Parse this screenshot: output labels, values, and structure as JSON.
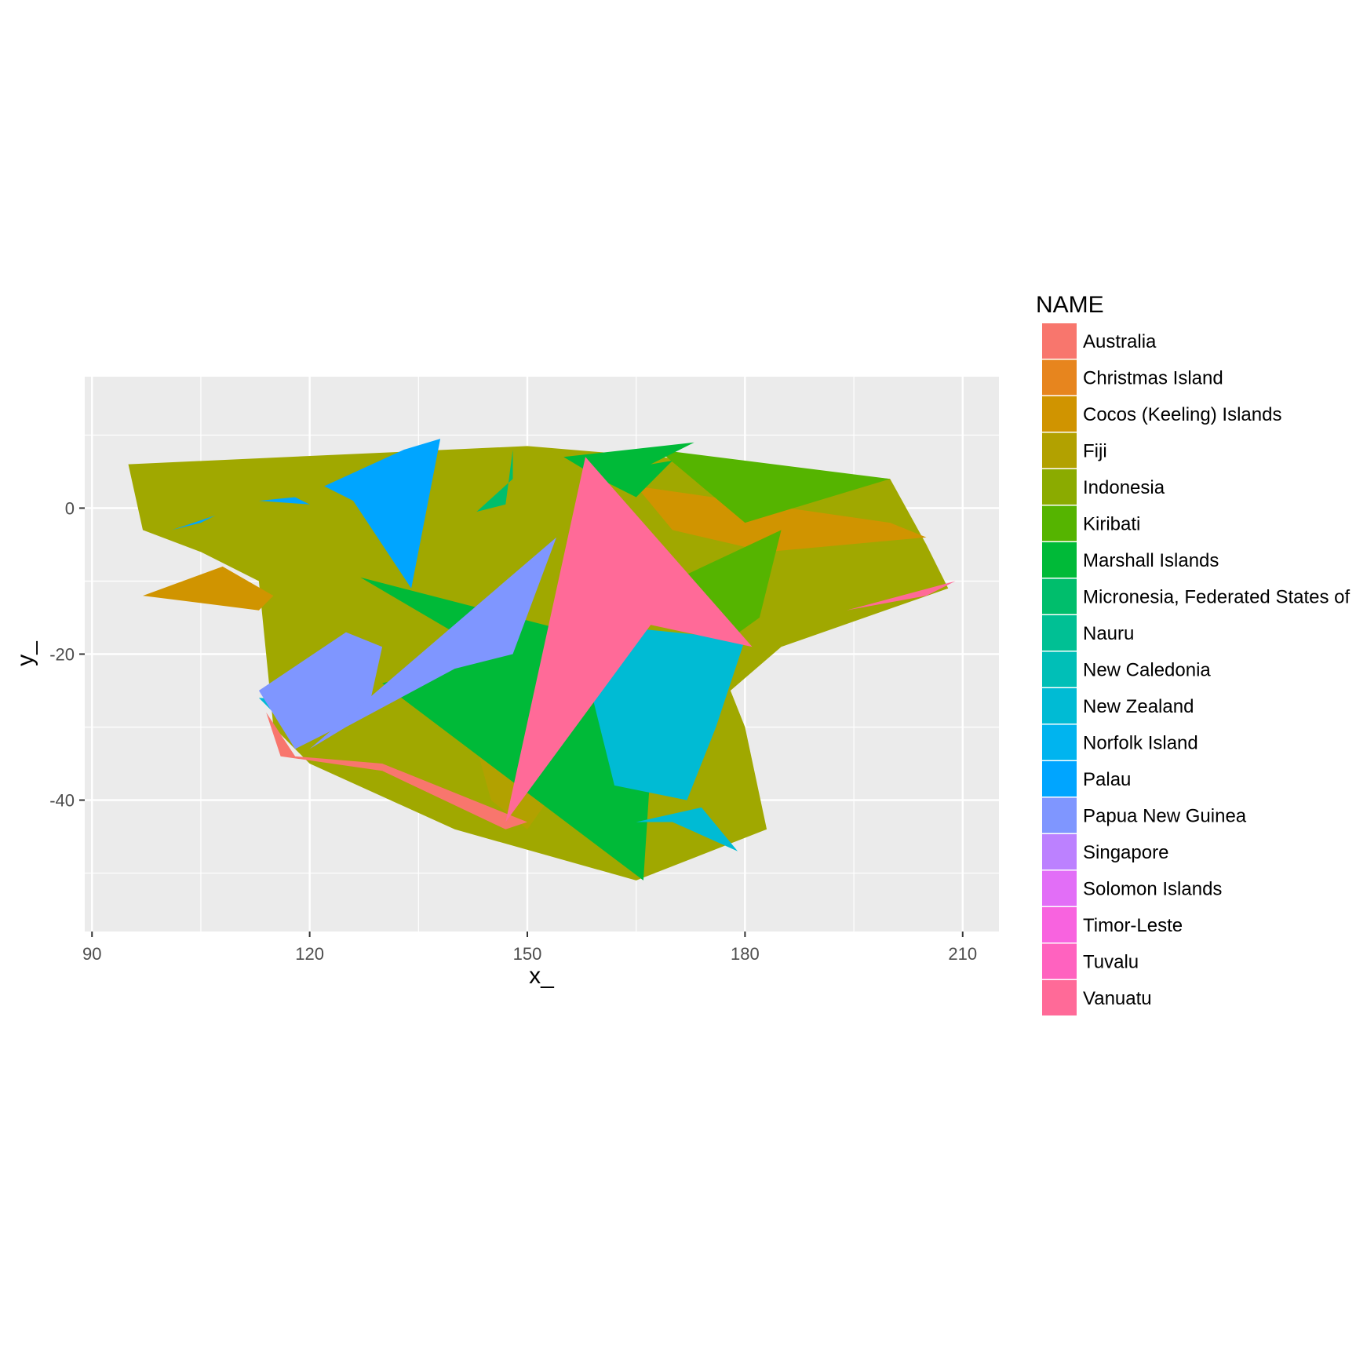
{
  "chart_data": {
    "type": "area",
    "xlabel": "x_",
    "ylabel": "y_",
    "xlim": [
      89,
      215
    ],
    "ylim": [
      -58,
      18
    ],
    "x_ticks": [
      90,
      120,
      150,
      180,
      210
    ],
    "x_minor": [
      105,
      135,
      165,
      195
    ],
    "y_ticks": [
      0,
      -20,
      -40
    ],
    "y_minor": [
      10,
      -10,
      -30,
      -50
    ],
    "grid": true,
    "legend": {
      "title": "NAME",
      "placement": "right",
      "entries": [
        {
          "name": "Australia",
          "color": "#F8766D"
        },
        {
          "name": "Christmas Island",
          "color": "#E7851E"
        },
        {
          "name": "Cocos (Keeling) Islands",
          "color": "#D09400"
        },
        {
          "name": "Fiji",
          "color": "#B2A100"
        },
        {
          "name": "Indonesia",
          "color": "#8BAB00"
        },
        {
          "name": "Kiribati",
          "color": "#55B400"
        },
        {
          "name": "Marshall Islands",
          "color": "#00BA38"
        },
        {
          "name": "Micronesia, Federated States of",
          "color": "#00BE6C"
        },
        {
          "name": "Nauru",
          "color": "#00C094"
        },
        {
          "name": "New Caledonia",
          "color": "#00BFB7"
        },
        {
          "name": "New Zealand",
          "color": "#00BBD4"
        },
        {
          "name": "Norfolk Island",
          "color": "#00B4EF"
        },
        {
          "name": "Palau",
          "color": "#00A5FF"
        },
        {
          "name": "Papua New Guinea",
          "color": "#7F96FF"
        },
        {
          "name": "Singapore",
          "color": "#BC81FF"
        },
        {
          "name": "Solomon Islands",
          "color": "#E26EF7"
        },
        {
          "name": "Timor-Leste",
          "color": "#F863DF"
        },
        {
          "name": "Tuvalu",
          "color": "#FF62BF"
        },
        {
          "name": "Vanuatu",
          "color": "#FF6A98"
        }
      ]
    },
    "polygons": [
      {
        "name": "Indonesia",
        "color": "#A0A800",
        "points": [
          [
            95,
            6
          ],
          [
            150,
            8.5
          ],
          [
            180,
            6
          ],
          [
            200,
            4
          ],
          [
            205,
            -5
          ],
          [
            208,
            -11
          ],
          [
            185,
            -19
          ],
          [
            178,
            -25
          ],
          [
            180,
            -30
          ],
          [
            183,
            -44
          ],
          [
            165,
            -51
          ],
          [
            140,
            -44
          ],
          [
            120,
            -35
          ],
          [
            115,
            -30
          ],
          [
            113,
            -10
          ],
          [
            105,
            -6
          ],
          [
            97,
            -3
          ]
        ]
      },
      {
        "name": "Cocos (Keeling) Islands",
        "color": "#D09400",
        "points": [
          [
            97,
            -12
          ],
          [
            108,
            -8
          ],
          [
            115,
            -12
          ],
          [
            113,
            -14
          ]
        ]
      },
      {
        "name": "Cocos (Keeling) Islands",
        "color": "#D09400",
        "points": [
          [
            165,
            3
          ],
          [
            200,
            -2
          ],
          [
            205,
            -4
          ],
          [
            183,
            -6
          ],
          [
            170,
            -3
          ]
        ]
      },
      {
        "name": "Fiji",
        "color": "#B2A100",
        "points": [
          [
            140,
            -22
          ],
          [
            155,
            -20
          ],
          [
            160,
            -30
          ],
          [
            150,
            -44
          ],
          [
            145,
            -40
          ]
        ]
      },
      {
        "name": "Kiribati",
        "color": "#55B400",
        "points": [
          [
            168,
            8
          ],
          [
            200,
            4
          ],
          [
            180,
            -2
          ]
        ]
      },
      {
        "name": "Kiribati",
        "color": "#55B400",
        "points": [
          [
            170,
            -10
          ],
          [
            185,
            -3
          ],
          [
            182,
            -15
          ],
          [
            175,
            -20
          ]
        ]
      },
      {
        "name": "Micronesia, Federated States of",
        "color": "#00BE6C",
        "points": [
          [
            143,
            -0.5
          ],
          [
            148,
            4
          ],
          [
            148,
            8
          ],
          [
            147,
            0.5
          ]
        ]
      },
      {
        "name": "Marshall Islands",
        "color": "#00BA38",
        "points": [
          [
            155,
            7
          ],
          [
            173,
            9
          ],
          [
            167,
            6
          ],
          [
            170,
            6.5
          ],
          [
            165,
            1.5
          ],
          [
            160,
            4
          ]
        ]
      },
      {
        "name": "Marshall Islands",
        "color": "#00BA38",
        "points": [
          [
            127,
            -9.5
          ],
          [
            168,
            -20
          ],
          [
            166,
            -51
          ],
          [
            130,
            -24
          ],
          [
            145,
            -20
          ]
        ]
      },
      {
        "name": "Palau",
        "color": "#00A5FF",
        "points": [
          [
            134,
            -11
          ],
          [
            138,
            9.5
          ],
          [
            133,
            8
          ],
          [
            122,
            3
          ],
          [
            126,
            1
          ]
        ]
      },
      {
        "name": "Palau",
        "color": "#00A5FF",
        "points": [
          [
            101,
            -3
          ],
          [
            107,
            -1
          ],
          [
            105,
            -2
          ]
        ]
      },
      {
        "name": "Palau",
        "color": "#00A5FF",
        "points": [
          [
            113,
            1
          ],
          [
            120,
            0.5
          ],
          [
            118,
            1.5
          ]
        ]
      },
      {
        "name": "New Zealand",
        "color": "#00BBD4",
        "points": [
          [
            160,
            -16
          ],
          [
            180,
            -18
          ],
          [
            176,
            -30
          ],
          [
            172,
            -40
          ],
          [
            162,
            -38
          ],
          [
            158,
            -22
          ]
        ]
      },
      {
        "name": "New Zealand",
        "color": "#00BBD4",
        "points": [
          [
            113,
            -26
          ],
          [
            130,
            -27
          ],
          [
            125,
            -30
          ],
          [
            115,
            -28
          ]
        ]
      },
      {
        "name": "New Zealand",
        "color": "#00BBD4",
        "points": [
          [
            165,
            -43
          ],
          [
            174,
            -41
          ],
          [
            179,
            -47
          ],
          [
            170,
            -43
          ]
        ]
      },
      {
        "name": "Australia",
        "color": "#F8766D",
        "points": [
          [
            114,
            -28
          ],
          [
            118,
            -34
          ],
          [
            130,
            -35
          ],
          [
            150,
            -43
          ],
          [
            147,
            -44
          ],
          [
            130,
            -36
          ],
          [
            116,
            -34
          ]
        ]
      },
      {
        "name": "Papua New Guinea",
        "color": "#7F96FF",
        "points": [
          [
            113,
            -25
          ],
          [
            125,
            -17
          ],
          [
            130,
            -19
          ],
          [
            128,
            -28
          ],
          [
            118,
            -33
          ]
        ]
      },
      {
        "name": "Papua New Guinea",
        "color": "#7F96FF",
        "points": [
          [
            120,
            -33
          ],
          [
            154,
            -4
          ],
          [
            148,
            -20
          ],
          [
            140,
            -22
          ],
          [
            125,
            -30
          ]
        ]
      },
      {
        "name": "Vanuatu",
        "color": "#FF6A98",
        "points": [
          [
            158,
            7
          ],
          [
            181,
            -19
          ],
          [
            167,
            -16
          ],
          [
            147,
            -43
          ]
        ]
      },
      {
        "name": "Vanuatu",
        "color": "#FF6A98",
        "points": [
          [
            194,
            -14
          ],
          [
            209,
            -10
          ],
          [
            205,
            -12
          ]
        ]
      }
    ]
  }
}
